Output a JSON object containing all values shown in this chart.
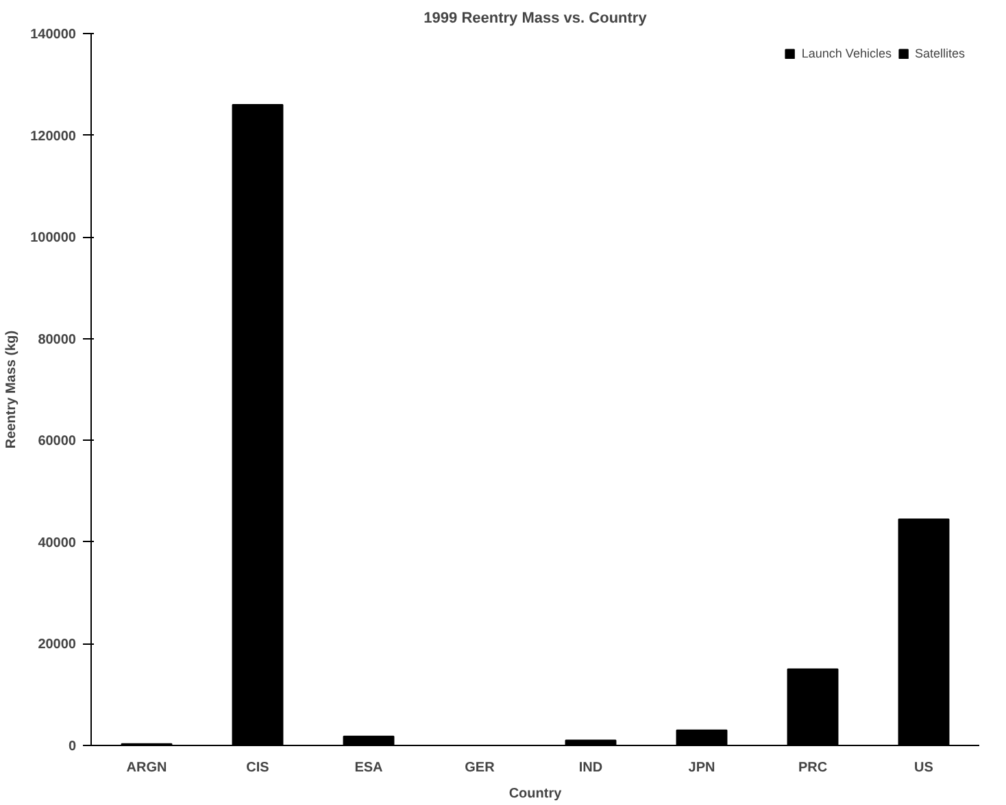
{
  "chart_data": {
    "type": "bar",
    "title": "1999 Reentry Mass vs. Country",
    "xlabel": "Country",
    "ylabel": "Reentry Mass (kg)",
    "categories": [
      "ARGN",
      "CIS",
      "ESA",
      "GER",
      "IND",
      "JPN",
      "PRC",
      "US"
    ],
    "series": [
      {
        "name": "Launch Vehicles",
        "color": "#000000",
        "values": [
          300,
          126000,
          1800,
          0,
          1000,
          3000,
          15000,
          44500
        ]
      },
      {
        "name": "Satellites",
        "color": "#000000",
        "values": [
          0,
          0,
          0,
          0,
          0,
          0,
          0,
          0
        ]
      }
    ],
    "ylim": [
      0,
      140000
    ],
    "yticks": [
      0,
      20000,
      40000,
      60000,
      80000,
      100000,
      120000,
      140000
    ],
    "grid": false,
    "legend": "top right"
  }
}
